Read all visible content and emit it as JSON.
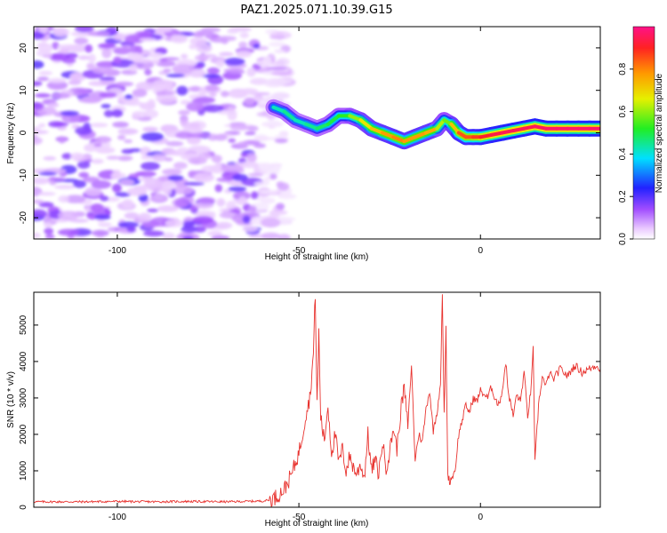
{
  "title": "PAZ1.2025.071.10.39.G15",
  "chart_data": [
    {
      "type": "heatmap",
      "xlabel": "Height of straight line (km)",
      "ylabel": "Frequency (Hz)",
      "xlim": [
        -123,
        33
      ],
      "ylim": [
        -25,
        25
      ],
      "xticks": [
        -100,
        -50,
        0
      ],
      "yticks": [
        -20,
        -10,
        0,
        10,
        20
      ],
      "colorbar": {
        "label": "Normalized spectral amplitude",
        "range": [
          0,
          1
        ],
        "ticks": [
          "0.0",
          "0.2",
          "0.4",
          "0.6",
          "0.8"
        ],
        "tick_values": [
          0.0,
          0.2,
          0.4,
          0.6,
          0.8
        ],
        "colormap": "rainbow"
      },
      "noise_region_x": [
        -123,
        -57
      ],
      "signal_ridge": {
        "x": [
          -57,
          -54,
          -51,
          -48,
          -45,
          -42,
          -39,
          -36,
          -33,
          -30,
          -27,
          -24,
          -21,
          -18,
          -15,
          -12,
          -10,
          -8,
          -6,
          -4,
          -2,
          0,
          3,
          6,
          9,
          12,
          15,
          18,
          21,
          24,
          27,
          30,
          33
        ],
        "frequency": [
          6,
          5,
          3,
          2,
          1,
          2,
          4,
          4,
          3,
          1,
          0,
          -1,
          -2,
          -1,
          0,
          1,
          3,
          2,
          0,
          -1,
          -1,
          -1,
          -0.5,
          0,
          0.5,
          1,
          1.5,
          1,
          1,
          1,
          1,
          1,
          1
        ],
        "amplitude": [
          0.35,
          0.5,
          0.4,
          0.45,
          0.45,
          0.5,
          0.5,
          0.55,
          0.65,
          0.7,
          0.75,
          0.8,
          0.8,
          0.75,
          0.8,
          0.7,
          0.55,
          0.6,
          0.85,
          0.85,
          0.85,
          0.9,
          0.92,
          0.95,
          0.95,
          0.95,
          0.95,
          0.97,
          0.97,
          0.97,
          0.97,
          0.97,
          0.97
        ]
      }
    },
    {
      "type": "line",
      "xlabel": "Height of straight line (km)",
      "ylabel": "SNR (10 * v/v)",
      "xlim": [
        -123,
        33
      ],
      "ylim": [
        0,
        5900
      ],
      "xticks": [
        -100,
        -50,
        0
      ],
      "yticks": [
        0,
        1000,
        2000,
        3000,
        4000,
        5000
      ],
      "color": "#e8332f",
      "series": [
        {
          "x": [
            -123,
            -110,
            -100,
            -90,
            -80,
            -70,
            -60,
            -58,
            -56,
            -54,
            -53,
            -52,
            -51,
            -50,
            -49,
            -48,
            -47,
            -46,
            -45.5,
            -45,
            -44.5,
            -44,
            -43,
            -42,
            -41,
            -40,
            -39,
            -38,
            -37,
            -36,
            -35,
            -34,
            -33,
            -32,
            -31,
            -30,
            -29,
            -28,
            -27,
            -26,
            -25,
            -24,
            -23,
            -22,
            -21,
            -20,
            -19,
            -18,
            -17,
            -16,
            -15,
            -14,
            -13,
            -12,
            -11,
            -10.5,
            -10,
            -9.5,
            -9,
            -8.5,
            -8,
            -7,
            -6,
            -5,
            -4,
            -3,
            -2,
            -1,
            0,
            1,
            2,
            3,
            4,
            5,
            6,
            7,
            7.5,
            8,
            9,
            10,
            11,
            12,
            13,
            14,
            14.5,
            15,
            16,
            17,
            18,
            19,
            20,
            22,
            24,
            26,
            28,
            30,
            32,
            33
          ],
          "values": [
            150,
            150,
            160,
            150,
            160,
            150,
            170,
            200,
            300,
            500,
            700,
            900,
            1200,
            1500,
            2000,
            2600,
            3000,
            4200,
            5900,
            2800,
            4800,
            2500,
            1800,
            2800,
            1500,
            2000,
            1200,
            1600,
            1000,
            1400,
            1100,
            900,
            1200,
            800,
            2000,
            1000,
            1300,
            900,
            1800,
            1100,
            1500,
            2200,
            1600,
            2600,
            3300,
            2200,
            3900,
            1300,
            2000,
            1800,
            2700,
            3200,
            2100,
            2600,
            3400,
            5800,
            2500,
            4900,
            900,
            700,
            800,
            1000,
            2000,
            2400,
            2800,
            2600,
            3000,
            2900,
            3200,
            3100,
            3000,
            3300,
            3000,
            2800,
            3200,
            4000,
            3300,
            3000,
            2500,
            3100,
            2900,
            3700,
            2500,
            3300,
            4500,
            1200,
            2800,
            3600,
            3300,
            3700,
            3500,
            3800,
            3600,
            3900,
            3700,
            3800,
            3900,
            3800
          ]
        }
      ]
    }
  ]
}
